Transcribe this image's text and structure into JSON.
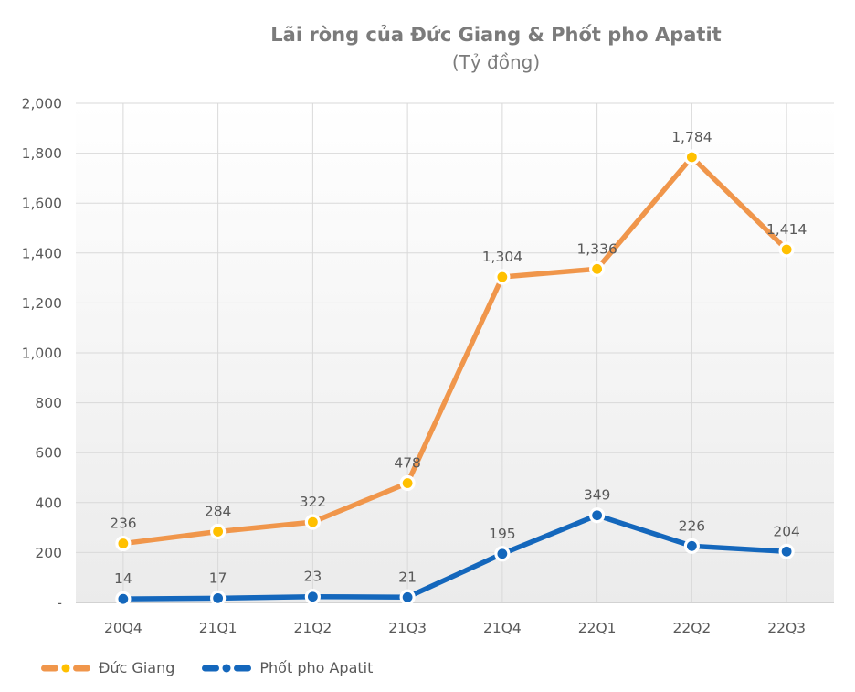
{
  "title": "Lãi ròng của Đức Giang & Phốt pho Apatit",
  "subtitle": "(Tỷ đồng)",
  "colors": {
    "title_text": "#7b7b7b",
    "axis_text": "#595959",
    "gridline": "#d9d9d9",
    "axis_line": "#c3c3c3",
    "plot_bg_top": "#ffffff",
    "plot_bg_bottom": "#ebebeb"
  },
  "chart_data": {
    "type": "line",
    "title": "Lãi ròng của Đức Giang & Phốt pho Apatit",
    "subtitle": "(Tỷ đồng)",
    "categories": [
      "20Q4",
      "21Q1",
      "21Q2",
      "21Q3",
      "21Q4",
      "22Q1",
      "22Q2",
      "22Q3"
    ],
    "series": [
      {
        "name": "Đức Giang",
        "color": "#F0964B",
        "marker_color": "#FFC000",
        "values": [
          236,
          284,
          322,
          478,
          1304,
          1336,
          1784,
          1414
        ],
        "labels": [
          "236",
          "284",
          "322",
          "478",
          "1,304",
          "1,336",
          "1,784",
          "1,414"
        ]
      },
      {
        "name": "Phốt pho Apatit",
        "color": "#1467BC",
        "marker_color": "#1467BC",
        "values": [
          14,
          17,
          23,
          21,
          195,
          349,
          226,
          204
        ],
        "labels": [
          "14",
          "17",
          "23",
          "21",
          "195",
          "349",
          "226",
          "204"
        ]
      }
    ],
    "ylim": [
      0,
      2000
    ],
    "ytick_step": 200,
    "ytick_labels": [
      "-",
      "200",
      "400",
      "600",
      "800",
      "1,000",
      "1,200",
      "1,400",
      "1,600",
      "1,800",
      "2,000"
    ],
    "zero_tick_label": "-",
    "grid": true,
    "legend_position": "bottom-left"
  }
}
